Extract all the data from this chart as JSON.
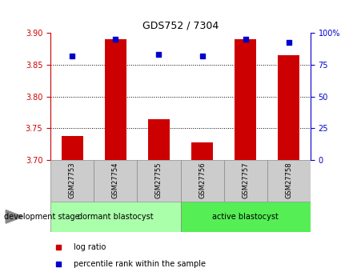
{
  "title": "GDS752 / 7304",
  "samples": [
    "GSM27753",
    "GSM27754",
    "GSM27755",
    "GSM27756",
    "GSM27757",
    "GSM27758"
  ],
  "log_ratio": [
    3.738,
    3.89,
    3.765,
    3.728,
    3.89,
    3.865
  ],
  "percentile_rank": [
    82,
    95,
    83,
    82,
    95,
    93
  ],
  "ylim_left": [
    3.7,
    3.9
  ],
  "ylim_right": [
    0,
    100
  ],
  "yticks_left": [
    3.7,
    3.75,
    3.8,
    3.85,
    3.9
  ],
  "yticks_right": [
    0,
    25,
    50,
    75,
    100
  ],
  "ytick_labels_right": [
    "0",
    "25",
    "50",
    "75",
    "100%"
  ],
  "groups": [
    {
      "label": "dormant blastocyst",
      "samples": [
        0,
        1,
        2
      ],
      "color": "#aaffaa"
    },
    {
      "label": "active blastocyst",
      "samples": [
        3,
        4,
        5
      ],
      "color": "#55ee55"
    }
  ],
  "group_label": "development stage",
  "bar_color": "#cc0000",
  "dot_color": "#0000cc",
  "axis_color_left": "#cc0000",
  "axis_color_right": "#0000cc",
  "legend_items": [
    "log ratio",
    "percentile rank within the sample"
  ]
}
